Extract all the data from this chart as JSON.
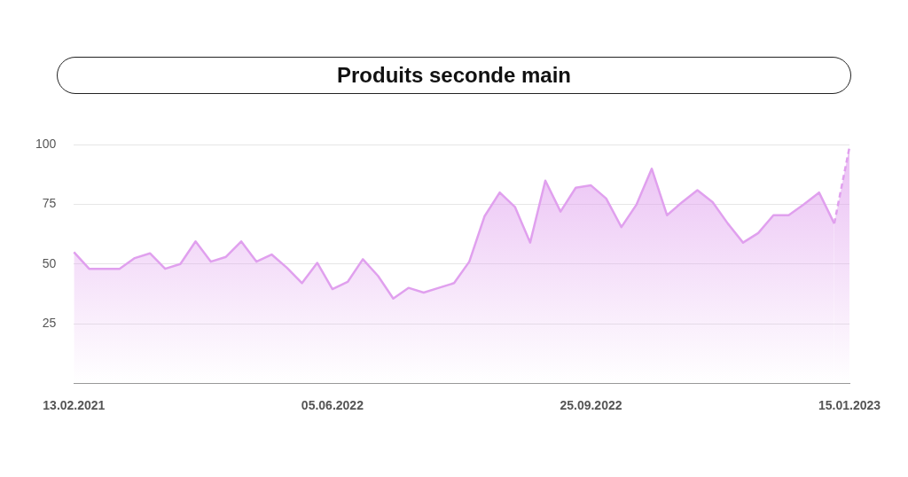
{
  "chart_data": {
    "type": "area",
    "title": "Produits seconde main",
    "categories": [
      "13.02.2021",
      null,
      null,
      null,
      null,
      null,
      null,
      null,
      null,
      null,
      null,
      null,
      null,
      null,
      null,
      null,
      null,
      "05.06.2022",
      null,
      null,
      null,
      null,
      null,
      null,
      null,
      null,
      null,
      null,
      null,
      null,
      null,
      null,
      null,
      null,
      "25.09.2022",
      null,
      null,
      null,
      null,
      null,
      null,
      null,
      null,
      null,
      null,
      null,
      null,
      null,
      null,
      null,
      null,
      "15.01.2023"
    ],
    "series": [
      {
        "color": "#e0a0ee",
        "values": [
          55,
          48,
          48,
          48,
          52.5,
          54.5,
          48,
          50,
          59.5,
          51,
          53,
          59.5,
          51,
          54,
          48.5,
          42,
          50.5,
          39.5,
          42.5,
          52,
          45,
          35.5,
          40,
          38,
          40,
          42,
          51,
          70,
          80,
          74,
          59,
          85,
          72,
          82,
          83,
          77.5,
          65.5,
          75,
          90,
          70.5,
          76,
          81,
          76,
          67,
          59,
          63,
          70.5,
          70.5,
          75,
          80,
          67,
          null
        ]
      },
      {
        "color": "#e0a0ee",
        "line_style": "dashed",
        "values": [
          null,
          null,
          null,
          null,
          null,
          null,
          null,
          null,
          null,
          null,
          null,
          null,
          null,
          null,
          null,
          null,
          null,
          null,
          null,
          null,
          null,
          null,
          null,
          null,
          null,
          null,
          null,
          null,
          null,
          null,
          null,
          null,
          null,
          null,
          null,
          null,
          null,
          null,
          null,
          null,
          null,
          null,
          null,
          null,
          null,
          null,
          null,
          null,
          null,
          null,
          67,
          99
        ]
      }
    ],
    "ylim": [
      0,
      100
    ],
    "yticks": [
      25,
      50,
      75,
      100
    ],
    "grid": "y",
    "legend": false
  }
}
